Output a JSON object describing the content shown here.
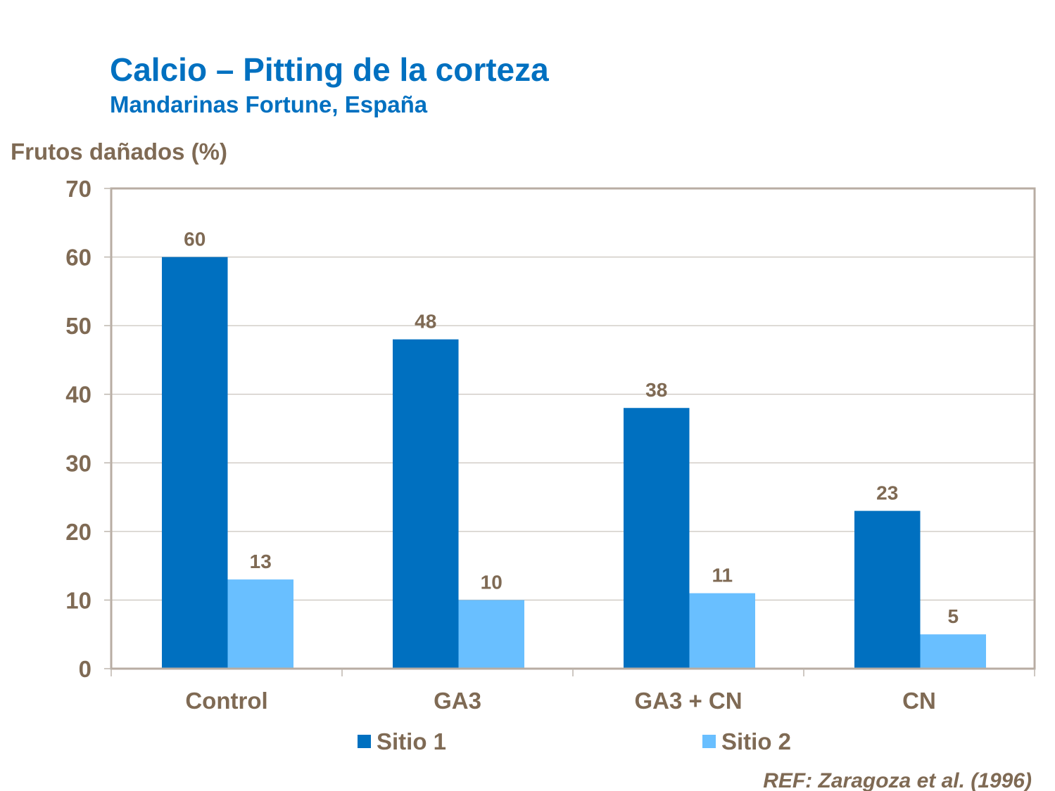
{
  "chart_data": {
    "type": "bar",
    "title": "Calcio – Pitting de la corteza",
    "subtitle": "Mandarinas Fortune, España",
    "xlabel": "",
    "ylabel": "Frutos dañados (%)",
    "categories": [
      "Control",
      "GA3",
      "GA3 + CN",
      "CN"
    ],
    "series": [
      {
        "name": "Sitio 1",
        "values": [
          60,
          48,
          38,
          23
        ],
        "color": "#0070C0"
      },
      {
        "name": "Sitio 2",
        "values": [
          13,
          10,
          11,
          5
        ],
        "color": "#69BFFF"
      }
    ],
    "ylim": [
      0,
      70
    ],
    "yticks": [
      0,
      10,
      20,
      30,
      40,
      50,
      60,
      70
    ],
    "grid": true,
    "legend": "bottom",
    "data_labels": true,
    "annotation": "REF: Zaragoza et al. (1996)"
  },
  "colors": {
    "text": "#7F6A54",
    "title": "#0070C0",
    "frame": "#B8ADA3",
    "grid": "#BDB6AE"
  }
}
